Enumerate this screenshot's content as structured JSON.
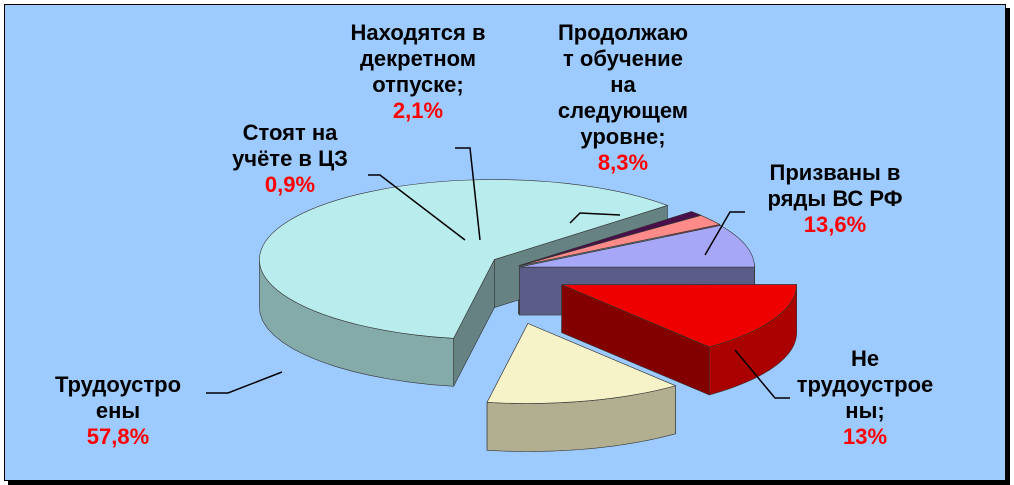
{
  "chart_data": {
    "type": "pie",
    "title": "",
    "legend": "none",
    "slices": [
      {
        "name": "Трудоустро ены",
        "name_lines": [
          "Трудоустро",
          "ены"
        ],
        "value": 57.8,
        "label": "57,8%",
        "color": "#b9ecec"
      },
      {
        "name": "Стоят на учёте в ЦЗ",
        "name_lines": [
          "Стоят на",
          "учёте в ЦЗ"
        ],
        "value": 0.9,
        "label": "0,9%",
        "color": "#4a0f4a"
      },
      {
        "name": "Находятся в декретном отпуске;",
        "name_lines": [
          "Находятся в",
          "декретном",
          "отпуске;"
        ],
        "value": 2.1,
        "label": "2,1%",
        "color": "#ff8a8a"
      },
      {
        "name": "Продолжаю т обучение на следующем уровне;",
        "name_lines": [
          "Продолжаю",
          "т обучение",
          "на",
          "следующем",
          "уровне;"
        ],
        "value": 8.3,
        "label": "8,3%",
        "color": "#a7a7f7"
      },
      {
        "name": "Призваны в ряды ВС РФ",
        "name_lines": [
          "Призваны в",
          "ряды ВС РФ"
        ],
        "value": 13.6,
        "label": "13,6%",
        "color": "#ee0000"
      },
      {
        "name": "Не трудоустрое ны;",
        "name_lines": [
          "Не",
          "трудоустрое",
          "ны;"
        ],
        "value": 13,
        "label": "13%",
        "color": "#f7f3c8"
      }
    ]
  }
}
